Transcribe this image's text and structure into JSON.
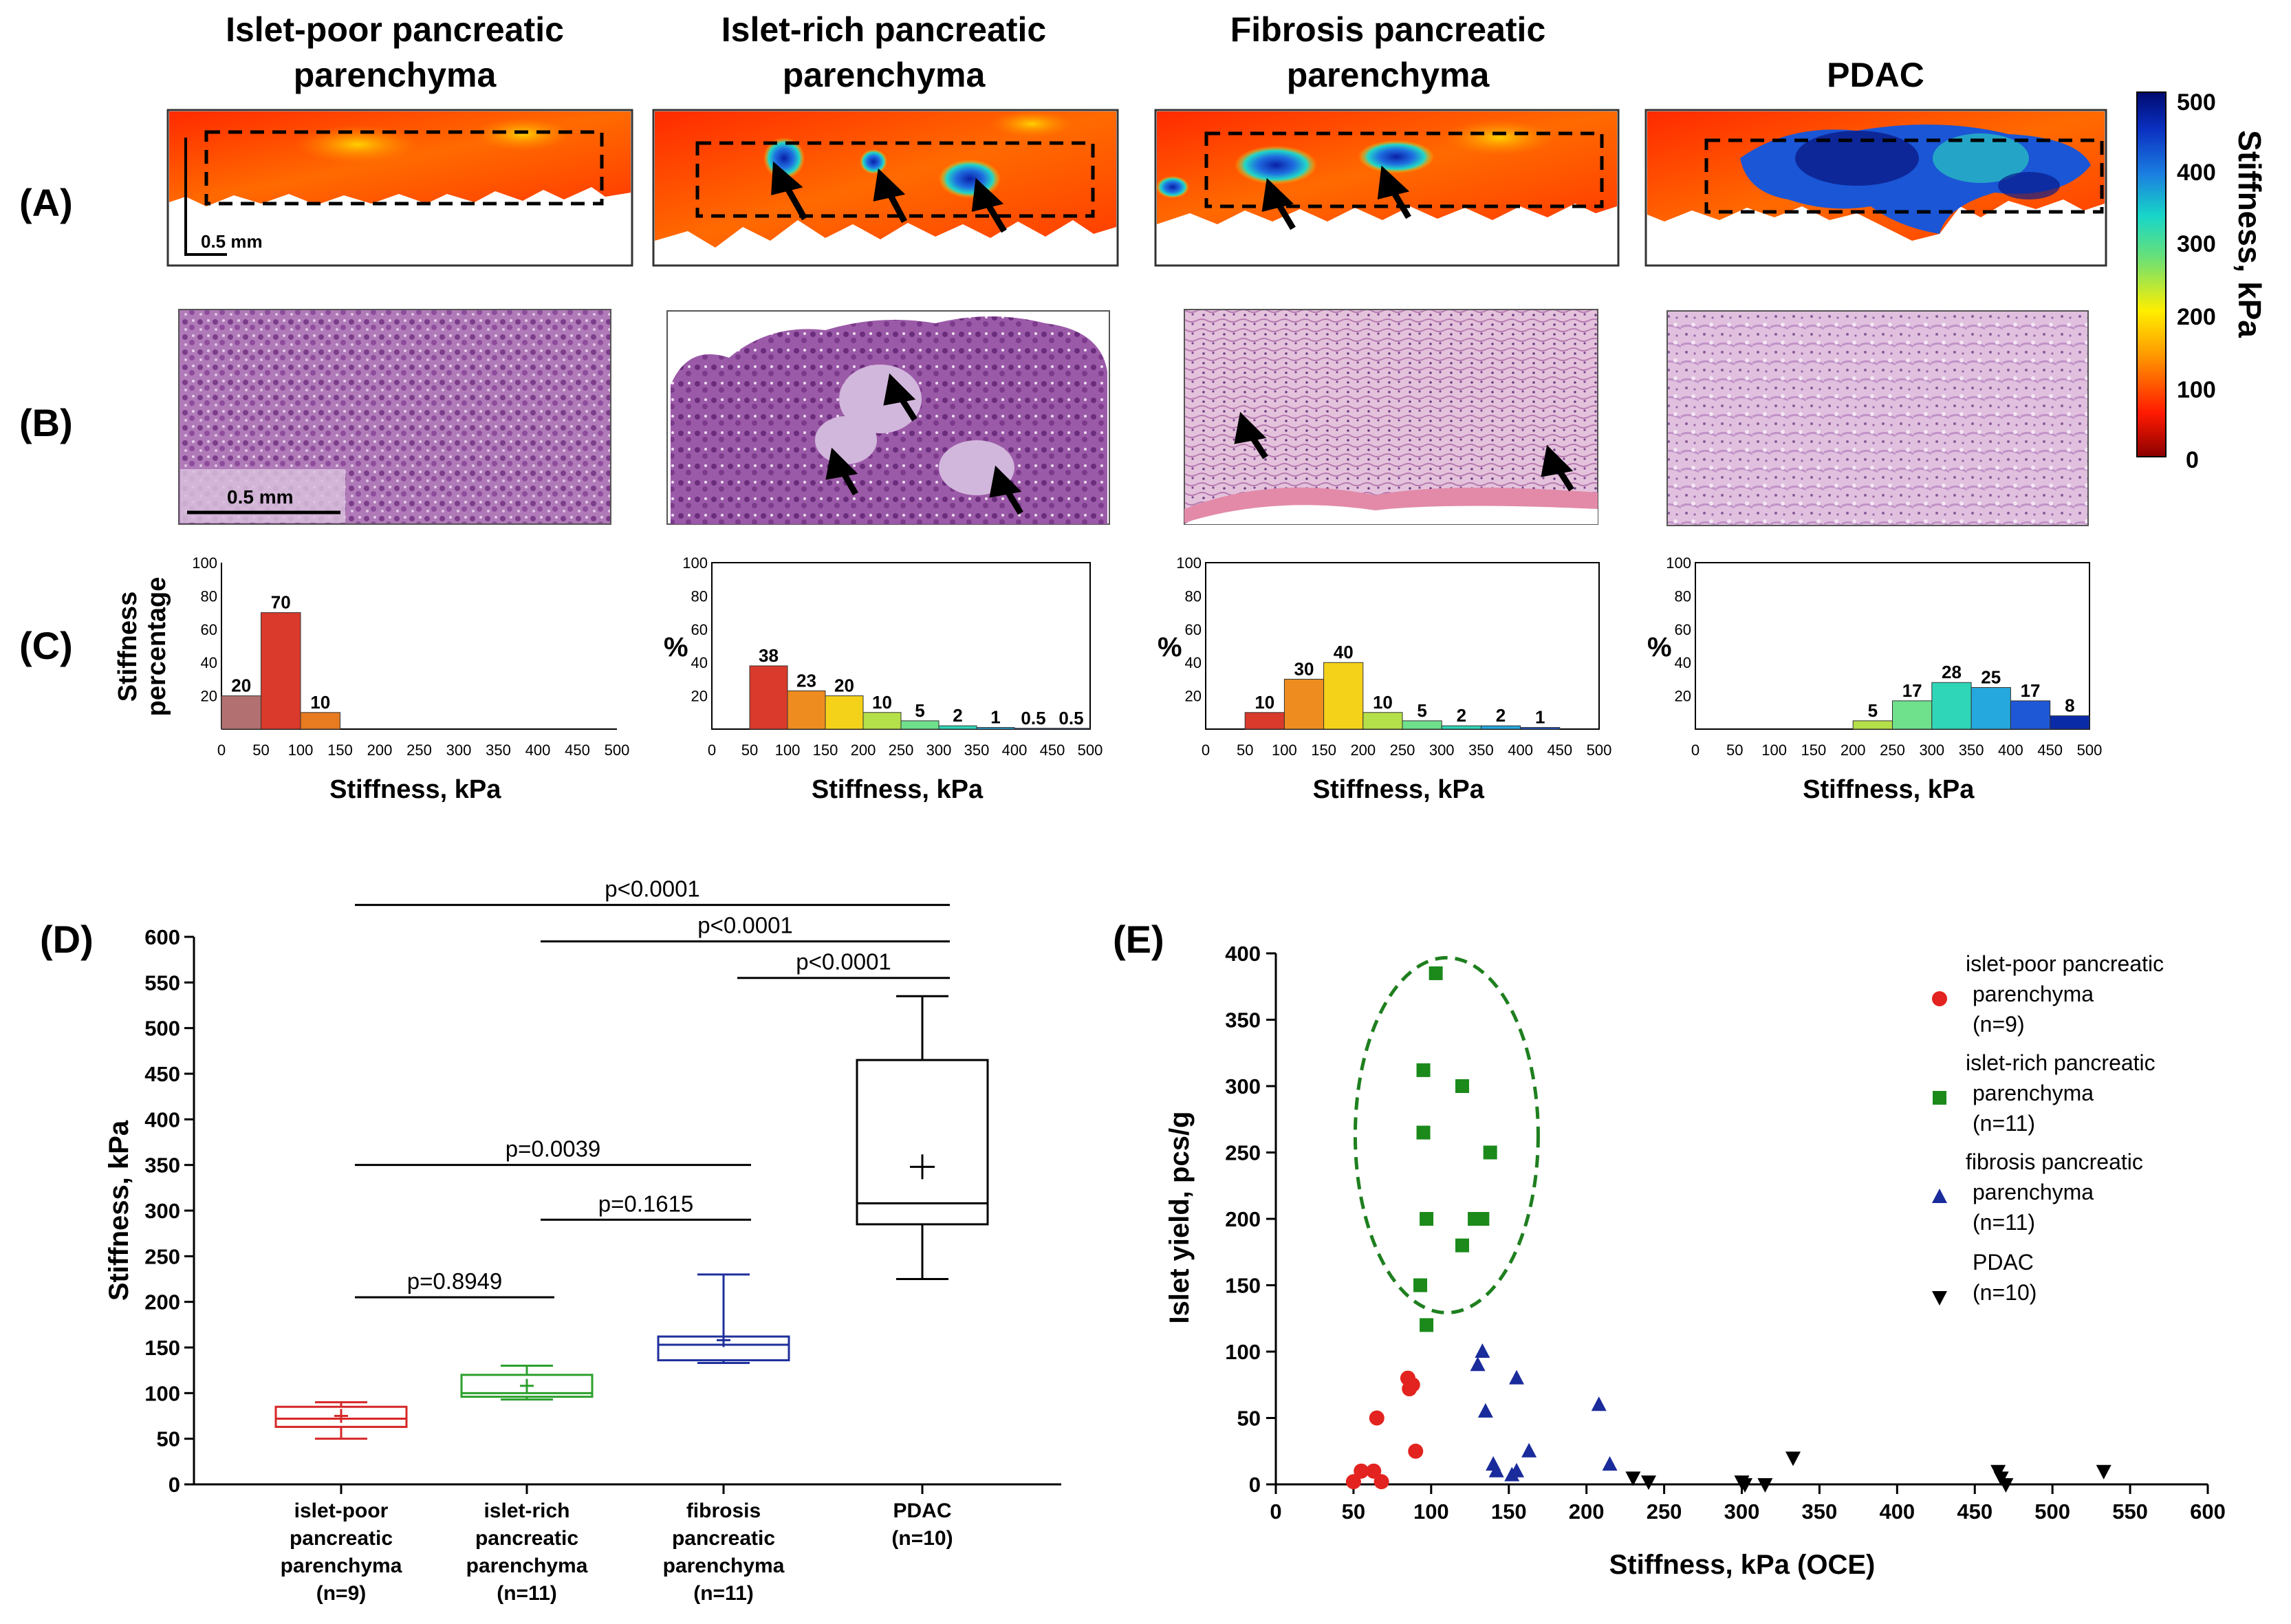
{
  "columns": [
    {
      "title_l1": "Islet-poor pancreatic",
      "title_l2": "parenchyma"
    },
    {
      "title_l1": "Islet-rich pancreatic",
      "title_l2": "parenchyma"
    },
    {
      "title_l1": "Fibrosis pancreatic",
      "title_l2": "parenchyma"
    },
    {
      "title_l1": "PDAC",
      "title_l2": ""
    }
  ],
  "row_labels": {
    "a": "(A)",
    "b": "(B)",
    "c": "(C)",
    "d": "(D)",
    "e": "(E)"
  },
  "scalebar_a": "0.5 mm",
  "scalebar_b": "0.5 mm",
  "colorbar": {
    "label": "Stiffness, kPa",
    "ticks": [
      "500",
      "400",
      "300",
      "200",
      "100",
      "0"
    ]
  },
  "hist_ylabel_first_l1": "Stiffness",
  "hist_ylabel_first_l2": "percentage",
  "hist_ylabel_pct": "%",
  "hist_xlabel": "Stiffness, kPa",
  "boxplot_ylabel": "Stiffness, kPa",
  "box_cats": [
    {
      "l1": "islet-poor",
      "l2": "pancreatic",
      "l3": "parenchyma",
      "l4": "(n=9)"
    },
    {
      "l1": "islet-rich",
      "l2": "pancreatic",
      "l3": "parenchyma",
      "l4": "(n=11)"
    },
    {
      "l1": "fibrosis",
      "l2": "pancreatic",
      "l3": "parenchyma",
      "l4": "(n=11)"
    },
    {
      "l1": "PDAC",
      "l2": "(n=10)",
      "l3": "",
      "l4": ""
    }
  ],
  "scatter_ylabel": "Islet yield, pcs/g",
  "scatter_xlabel": "Stiffness, kPa (OCE)",
  "legend": [
    {
      "l1": "islet-poor pancreatic",
      "l2": "parenchyma",
      "l3": "(n=9)",
      "color": "#e3231f",
      "marker": "circle"
    },
    {
      "l1": "islet-rich pancreatic",
      "l2": "parenchyma",
      "l3": "(n=11)",
      "color": "#1b8a1b",
      "marker": "square"
    },
    {
      "l1": "fibrosis pancreatic",
      "l2": "parenchyma",
      "l3": "(n=11)",
      "color": "#1a2b9b",
      "marker": "triangle-up"
    },
    {
      "l1": "PDAC",
      "l2": "(n=10)",
      "l3": "",
      "color": "#000000",
      "marker": "triangle-down"
    }
  ],
  "chart_data": [
    {
      "type": "bar",
      "panel": "C1",
      "bins": [
        [
          0,
          50
        ],
        [
          50,
          100
        ],
        [
          100,
          150
        ]
      ],
      "values": [
        20,
        70,
        10
      ],
      "labels": [
        "20",
        "70",
        "10"
      ],
      "colors": [
        "#b27070",
        "#d93a2b",
        "#e87a20"
      ],
      "xlim": [
        0,
        500
      ],
      "ylim": [
        0,
        100
      ],
      "xticks": [
        0,
        50,
        100,
        150,
        200,
        250,
        300,
        350,
        400,
        450,
        500
      ],
      "yticks": [
        20,
        40,
        60,
        80,
        100
      ],
      "xlabel": "Stiffness, kPa"
    },
    {
      "type": "bar",
      "panel": "C2",
      "bins": [
        [
          50,
          100
        ],
        [
          100,
          150
        ],
        [
          150,
          200
        ],
        [
          200,
          250
        ],
        [
          250,
          300
        ],
        [
          300,
          350
        ],
        [
          350,
          400
        ],
        [
          400,
          450
        ],
        [
          450,
          500
        ]
      ],
      "values": [
        38,
        23,
        20,
        10,
        5,
        2,
        1,
        0.5,
        0.5
      ],
      "labels": [
        "38",
        "23",
        "20",
        "10",
        "5",
        "2",
        "1",
        "0.5",
        "0.5"
      ],
      "colors": [
        "#d93a2b",
        "#ee8c20",
        "#f5d21a",
        "#b4e04a",
        "#6fe08c",
        "#2fd6b8",
        "#25a8dd",
        "#1f58d6",
        "#0a2ba8"
      ],
      "xlim": [
        0,
        500
      ],
      "ylim": [
        0,
        100
      ],
      "xticks": [
        0,
        50,
        100,
        150,
        200,
        250,
        300,
        350,
        400,
        450,
        500
      ],
      "yticks": [
        20,
        40,
        60,
        80,
        100
      ],
      "xlabel": "Stiffness, kPa"
    },
    {
      "type": "bar",
      "panel": "C3",
      "bins": [
        [
          50,
          100
        ],
        [
          100,
          150
        ],
        [
          150,
          200
        ],
        [
          200,
          250
        ],
        [
          250,
          300
        ],
        [
          300,
          350
        ],
        [
          350,
          400
        ],
        [
          400,
          450
        ]
      ],
      "values": [
        10,
        30,
        40,
        10,
        5,
        2,
        2,
        1
      ],
      "labels": [
        "10",
        "30",
        "40",
        "10",
        "5",
        "2",
        "2",
        "1"
      ],
      "colors": [
        "#d93a2b",
        "#ee8c20",
        "#f5d21a",
        "#b4e04a",
        "#6fe08c",
        "#2fd6b8",
        "#25a8dd",
        "#1f58d6"
      ],
      "xlim": [
        0,
        500
      ],
      "ylim": [
        0,
        100
      ],
      "xticks": [
        0,
        50,
        100,
        150,
        200,
        250,
        300,
        350,
        400,
        450,
        500
      ],
      "yticks": [
        20,
        40,
        60,
        80,
        100
      ],
      "xlabel": "Stiffness, kPa"
    },
    {
      "type": "bar",
      "panel": "C4",
      "bins": [
        [
          200,
          250
        ],
        [
          250,
          300
        ],
        [
          300,
          350
        ],
        [
          350,
          400
        ],
        [
          400,
          450
        ],
        [
          450,
          500
        ]
      ],
      "values": [
        5,
        17,
        28,
        25,
        17,
        8
      ],
      "labels": [
        "5",
        "17",
        "28",
        "25",
        "17",
        "8"
      ],
      "colors": [
        "#b4e04a",
        "#6fe08c",
        "#2fd6b8",
        "#25a8dd",
        "#1f58d6",
        "#0a2ba8"
      ],
      "xlim": [
        0,
        500
      ],
      "ylim": [
        0,
        100
      ],
      "xticks": [
        0,
        50,
        100,
        150,
        200,
        250,
        300,
        350,
        400,
        450,
        500
      ],
      "yticks": [
        20,
        40,
        60,
        80,
        100
      ],
      "xlabel": "Stiffness, kPa"
    },
    {
      "type": "box",
      "panel": "D",
      "ylabel": "Stiffness, kPa",
      "ylim": [
        0,
        600
      ],
      "yticks": [
        0,
        50,
        100,
        150,
        200,
        250,
        300,
        350,
        400,
        450,
        500,
        550,
        600
      ],
      "boxes": [
        {
          "min": 50,
          "q1": 63,
          "median": 72,
          "q3": 85,
          "max": 90,
          "mean": 75,
          "color": "#d62728"
        },
        {
          "min": 93,
          "q1": 96,
          "median": 100,
          "q3": 120,
          "max": 130,
          "mean": 108,
          "color": "#2ca02c"
        },
        {
          "min": 133,
          "q1": 136,
          "median": 153,
          "q3": 162,
          "max": 230,
          "mean": 158,
          "color": "#1f2f9c"
        },
        {
          "min": 225,
          "q1": 285,
          "median": 308,
          "q3": 465,
          "max": 535,
          "mean": 348,
          "color": "#000000"
        }
      ],
      "comparisons": [
        {
          "from": 0,
          "to": 3,
          "y": 635,
          "label": "p<0.0001"
        },
        {
          "from": 1,
          "to": 3,
          "y": 595,
          "label": "p<0.0001"
        },
        {
          "from": 2,
          "to": 3,
          "y": 555,
          "label": "p<0.0001"
        },
        {
          "from": 0,
          "to": 2,
          "y": 350,
          "label": "p=0.0039"
        },
        {
          "from": 1,
          "to": 2,
          "y": 290,
          "label": "p=0.1615"
        },
        {
          "from": 0,
          "to": 1,
          "y": 205,
          "label": "p=0.8949"
        }
      ]
    },
    {
      "type": "scatter",
      "panel": "E",
      "xlabel": "Stiffness, kPa (OCE)",
      "ylabel": "Islet yield, pcs/g",
      "xlim": [
        0,
        600
      ],
      "ylim": [
        0,
        400
      ],
      "xticks": [
        0,
        50,
        100,
        150,
        200,
        250,
        300,
        350,
        400,
        450,
        500,
        550,
        600
      ],
      "yticks": [
        0,
        50,
        100,
        150,
        200,
        250,
        300,
        350,
        400
      ],
      "series": [
        {
          "name": "islet-poor pancreatic parenchyma (n=9)",
          "points": [
            [
              50,
              2
            ],
            [
              55,
              10
            ],
            [
              63,
              10
            ],
            [
              65,
              50
            ],
            [
              68,
              2
            ],
            [
              85,
              80
            ],
            [
              86,
              72
            ],
            [
              88,
              75
            ],
            [
              90,
              25
            ]
          ]
        },
        {
          "name": "islet-rich pancreatic parenchyma (n=11)",
          "points": [
            [
              103,
              385
            ],
            [
              95,
              312
            ],
            [
              120,
              300
            ],
            [
              95,
              265
            ],
            [
              138,
              250
            ],
            [
              97,
              200
            ],
            [
              128,
              200
            ],
            [
              133,
              200
            ],
            [
              120,
              180
            ],
            [
              93,
              150
            ],
            [
              97,
              120
            ]
          ]
        },
        {
          "name": "fibrosis pancreatic parenchyma (n=11)",
          "points": [
            [
              130,
              90
            ],
            [
              133,
              100
            ],
            [
              135,
              55
            ],
            [
              140,
              15
            ],
            [
              142,
              10
            ],
            [
              152,
              7
            ],
            [
              155,
              10
            ],
            [
              155,
              80
            ],
            [
              163,
              25
            ],
            [
              208,
              60
            ],
            [
              215,
              15
            ]
          ]
        },
        {
          "name": "PDAC (n=10)",
          "points": [
            [
              230,
              5
            ],
            [
              240,
              2
            ],
            [
              300,
              2
            ],
            [
              302,
              0
            ],
            [
              315,
              0
            ],
            [
              333,
              20
            ],
            [
              465,
              10
            ],
            [
              467,
              5
            ],
            [
              470,
              0
            ],
            [
              533,
              10
            ]
          ]
        }
      ],
      "annotation": "dashed ellipse around islet-rich group"
    }
  ]
}
